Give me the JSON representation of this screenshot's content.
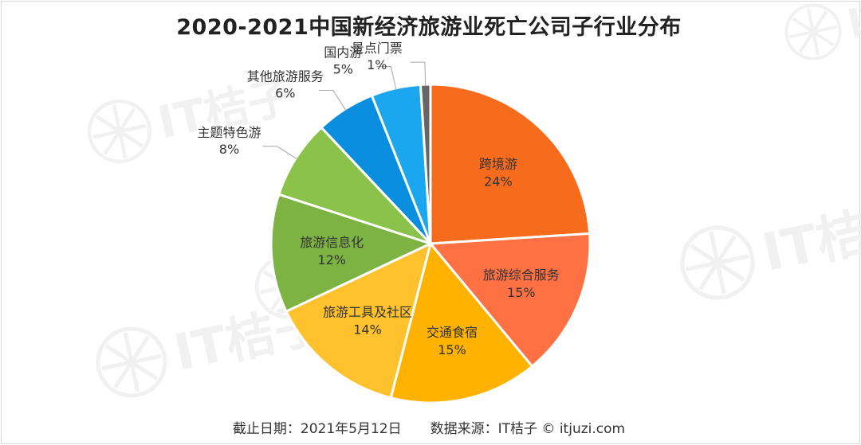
{
  "chart_data": {
    "type": "pie",
    "title": "2020-2021中国新经济旅游业死亡公司子行业分布",
    "slices": [
      {
        "label": "跨境游",
        "value": 24,
        "display": "24%",
        "color": "#F76B1C",
        "inside": true
      },
      {
        "label": "旅游综合服务",
        "value": 15,
        "display": "15%",
        "color": "#FF7043",
        "inside": true
      },
      {
        "label": "交通食宿",
        "value": 15,
        "display": "15%",
        "color": "#FFB300",
        "inside": true
      },
      {
        "label": "旅游工具及社区",
        "value": 14,
        "display": "14%",
        "color": "#FFC12C",
        "inside": true
      },
      {
        "label": "旅游信息化",
        "value": 12,
        "display": "12%",
        "color": "#7CB342",
        "inside": true
      },
      {
        "label": "主题特色游",
        "value": 8,
        "display": "8%",
        "color": "#8BC34A",
        "inside": false
      },
      {
        "label": "其他旅游服务",
        "value": 6,
        "display": "6%",
        "color": "#0A8FE0",
        "inside": false
      },
      {
        "label": "国内游",
        "value": 5,
        "display": "5%",
        "color": "#1AA7F0",
        "inside": false
      },
      {
        "label": "景点门票",
        "value": 1,
        "display": "1%",
        "color": "#666666",
        "inside": false
      }
    ]
  },
  "watermark": {
    "text": "IT桔子",
    "color": "#f1f1f1"
  },
  "footer": {
    "date_label": "截止日期：2021年5月12日",
    "source_label": "数据来源：IT桔子 © itjuzi.com"
  }
}
